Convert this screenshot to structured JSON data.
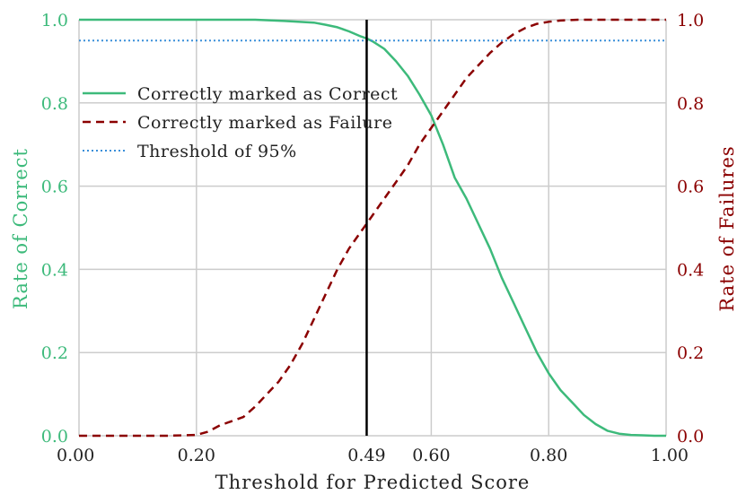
{
  "chart_data": {
    "type": "line",
    "xlabel": "Threshold for Predicted Score",
    "ylabel_left": "Rate of Correct",
    "ylabel_right": "Rate of Failures",
    "xlim": [
      0,
      1
    ],
    "ylim": [
      0,
      1
    ],
    "grid": true,
    "legend_position": "upper-left",
    "x_ticks": [
      0,
      0.2,
      0.49,
      0.6,
      0.8,
      1.0
    ],
    "x_tick_labels": [
      "0.00",
      "0.20",
      "0.49",
      "0.60",
      "0.80",
      "1.00"
    ],
    "y_ticks": [
      0,
      0.2,
      0.4,
      0.6,
      0.8,
      1.0
    ],
    "y_tick_labels_left": [
      "0.0",
      "0.2",
      "0.4",
      "0.6",
      "0.8",
      "1.0"
    ],
    "y_tick_labels_right": [
      "0.0",
      "0.2",
      "0.4",
      "0.6",
      "0.8",
      "1.0"
    ],
    "vertical_line_x": 0.49,
    "threshold_y": 0.95,
    "colors": {
      "correct": "#3dba7b",
      "failure": "#8b0000",
      "threshold": "#3a8fd9",
      "vline": "#000000",
      "grid": "#cccccc"
    },
    "series": [
      {
        "name": "Correctly marked as Correct",
        "axis": "left",
        "style": "solid",
        "x": [
          0,
          0.05,
          0.1,
          0.15,
          0.2,
          0.25,
          0.3,
          0.35,
          0.4,
          0.42,
          0.44,
          0.46,
          0.48,
          0.49,
          0.5,
          0.52,
          0.54,
          0.56,
          0.58,
          0.6,
          0.62,
          0.64,
          0.66,
          0.68,
          0.7,
          0.72,
          0.74,
          0.76,
          0.78,
          0.8,
          0.82,
          0.84,
          0.86,
          0.88,
          0.9,
          0.92,
          0.94,
          0.96,
          0.98,
          1.0
        ],
        "y": [
          1.0,
          1.0,
          1.0,
          1.0,
          1.0,
          1.0,
          1.0,
          0.997,
          0.993,
          0.988,
          0.982,
          0.972,
          0.96,
          0.955,
          0.948,
          0.93,
          0.9,
          0.865,
          0.82,
          0.77,
          0.7,
          0.62,
          0.57,
          0.51,
          0.45,
          0.38,
          0.32,
          0.26,
          0.2,
          0.15,
          0.11,
          0.08,
          0.05,
          0.028,
          0.012,
          0.005,
          0.002,
          0.001,
          0.0,
          0.0
        ]
      },
      {
        "name": "Correctly marked as Failure",
        "axis": "right",
        "style": "dashed",
        "x": [
          0,
          0.05,
          0.1,
          0.15,
          0.2,
          0.22,
          0.24,
          0.26,
          0.28,
          0.3,
          0.32,
          0.34,
          0.36,
          0.38,
          0.4,
          0.42,
          0.44,
          0.46,
          0.48,
          0.49,
          0.5,
          0.52,
          0.54,
          0.56,
          0.58,
          0.6,
          0.62,
          0.64,
          0.66,
          0.68,
          0.7,
          0.72,
          0.74,
          0.76,
          0.78,
          0.8,
          0.82,
          0.85,
          0.9,
          0.95,
          1.0
        ],
        "y": [
          0.0,
          0.0,
          0.0,
          0.0,
          0.002,
          0.01,
          0.025,
          0.035,
          0.045,
          0.07,
          0.1,
          0.13,
          0.17,
          0.22,
          0.28,
          0.34,
          0.4,
          0.45,
          0.49,
          0.51,
          0.53,
          0.57,
          0.61,
          0.65,
          0.7,
          0.74,
          0.78,
          0.82,
          0.86,
          0.89,
          0.92,
          0.945,
          0.965,
          0.98,
          0.99,
          0.995,
          0.998,
          1.0,
          1.0,
          1.0,
          1.0
        ]
      },
      {
        "name": "Threshold of 95%",
        "axis": "left",
        "style": "dotted",
        "x": [
          0,
          1
        ],
        "y": [
          0.95,
          0.95
        ]
      }
    ]
  }
}
